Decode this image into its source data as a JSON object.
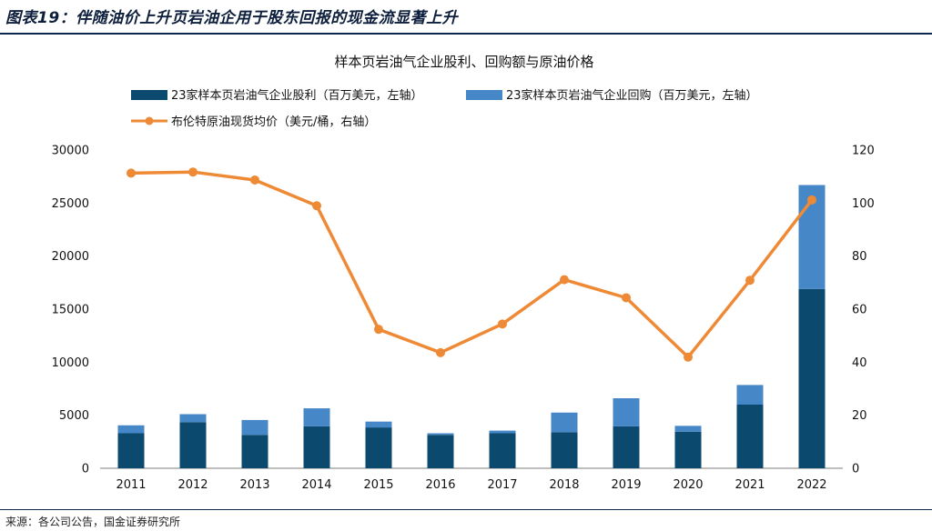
{
  "header": {
    "title": "图表19：伴随油价上升页岩油企用于股东回报的现金流显著上升"
  },
  "footer": {
    "source": "来源：各公司公告，国金证券研究所"
  },
  "colors": {
    "dividend": "#0b4a6e",
    "buyback": "#4687c8",
    "brent": "#ee8a36",
    "rule": "#0d2a4e"
  },
  "chart_data": {
    "type": "bar",
    "stacked": true,
    "title": "样本页岩油气企业股利、回购额与原油价格",
    "categories": [
      "2011",
      "2012",
      "2013",
      "2014",
      "2015",
      "2016",
      "2017",
      "2018",
      "2019",
      "2020",
      "2021",
      "2022"
    ],
    "series": [
      {
        "name": "23家样本页岩油气企业股利（百万美元，左轴）",
        "type": "bar",
        "axis": "left",
        "values": [
          3300,
          4350,
          3150,
          3950,
          3850,
          3150,
          3300,
          3400,
          3950,
          3450,
          6000,
          16900
        ]
      },
      {
        "name": "23家样本页岩油气企业回购（百万美元，左轴）",
        "type": "bar",
        "axis": "left",
        "values": [
          750,
          750,
          1400,
          1700,
          550,
          150,
          250,
          1850,
          2650,
          550,
          1850,
          9800
        ]
      },
      {
        "name": "布伦特原油现货均价（美元/桶，右轴）",
        "type": "line",
        "axis": "right",
        "values": [
          111.3,
          111.7,
          108.7,
          99.0,
          52.4,
          43.6,
          54.4,
          71.1,
          64.3,
          41.9,
          70.9,
          101.2
        ]
      }
    ],
    "y_left": {
      "min": 0,
      "max": 30000,
      "ticks": [
        "0",
        "5000",
        "10000",
        "15000",
        "20000",
        "25000",
        "30000"
      ]
    },
    "y_right": {
      "min": 0,
      "max": 120,
      "ticks": [
        "0",
        "20",
        "40",
        "60",
        "80",
        "100",
        "120"
      ]
    },
    "legend_position": "top",
    "grid": false
  }
}
